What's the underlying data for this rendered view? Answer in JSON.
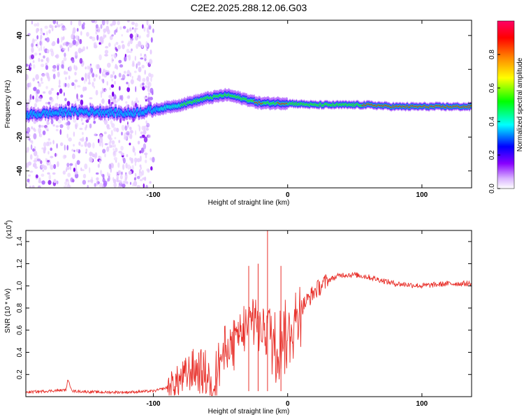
{
  "title": "C2E2.2025.288.12.06.G03",
  "chart_data": [
    {
      "type": "heatmap",
      "name": "spectrogram",
      "xlabel": "Height of straight line (km)",
      "ylabel": "Frequency (Hz)",
      "xlim": [
        -195,
        137
      ],
      "ylim": [
        -50,
        49
      ],
      "x_ticks": [
        -100,
        0,
        100
      ],
      "x_tick_labels": [
        "-100",
        "0",
        "100"
      ],
      "y_ticks": [
        -40,
        -20,
        0,
        20,
        40
      ],
      "y_tick_labels": [
        "-40",
        "-20",
        "0",
        "20",
        "40"
      ],
      "ridge": {
        "x": [
          -195,
          -180,
          -160,
          -140,
          -120,
          -100,
          -80,
          -60,
          -45,
          -35,
          -20,
          -10,
          0,
          20,
          40,
          60,
          80,
          100,
          120,
          137
        ],
        "frequency": [
          -7,
          -6,
          -5,
          -5,
          -6,
          -4,
          -1,
          3,
          5,
          3,
          0,
          0,
          0,
          -1,
          -1,
          -1,
          -2,
          -2,
          -2,
          -2
        ]
      },
      "noise_region_x": [
        -195,
        -100
      ],
      "colorbar": {
        "label": "Normalized spectral amplitude",
        "range": [
          0,
          1
        ],
        "ticks": [
          0.0,
          0.2,
          0.4,
          0.6,
          0.8
        ],
        "tick_labels": [
          "0.0",
          "0.2",
          "0.4",
          "0.6",
          "0.8"
        ],
        "colors": [
          "#ffffff",
          "#cc99ff",
          "#8800ff",
          "#0000ff",
          "#00ffff",
          "#00ff00",
          "#ffff00",
          "#ff8800",
          "#ff0000",
          "#ff0066"
        ]
      }
    },
    {
      "type": "line",
      "name": "snr",
      "xlabel": "Height of straight line (km)",
      "ylabel": "SNR (10 * v/v)",
      "y_scale_label": "(x10",
      "y_scale_exp": "4",
      "y_scale_close": ")",
      "xlim": [
        -195,
        137
      ],
      "ylim": [
        0,
        1.5
      ],
      "x_ticks": [
        -100,
        0,
        100
      ],
      "x_tick_labels": [
        "-100",
        "0",
        "100"
      ],
      "y_ticks": [
        0.2,
        0.4,
        0.6,
        0.8,
        1.0,
        1.2,
        1.4
      ],
      "y_tick_labels": [
        "0.2",
        "0.4",
        "0.6",
        "0.8",
        "1.0",
        "1.2",
        "1.4"
      ],
      "color": "#e8302a",
      "series": [
        {
          "name": "SNR",
          "x": [
            -195,
            -180,
            -165,
            -164,
            -160,
            -140,
            -120,
            -100,
            -90,
            -80,
            -70,
            -60,
            -55,
            -50,
            -40,
            -30,
            -25,
            -20,
            -15,
            -10,
            0,
            10,
            20,
            30,
            40,
            50,
            60,
            70,
            80,
            90,
            100,
            110,
            120,
            137
          ],
          "y": [
            0.04,
            0.05,
            0.06,
            0.15,
            0.05,
            0.04,
            0.04,
            0.05,
            0.08,
            0.15,
            0.25,
            0.2,
            0.1,
            0.35,
            0.5,
            0.6,
            0.75,
            0.6,
            0.7,
            0.45,
            0.55,
            0.8,
            0.95,
            1.05,
            1.1,
            1.1,
            1.08,
            1.05,
            1.02,
            1.01,
            1.0,
            1.01,
            1.02,
            1.02
          ]
        }
      ],
      "spikes": [
        {
          "x": -29,
          "y": 1.18
        },
        {
          "x": -22,
          "y": 1.2
        },
        {
          "x": -15,
          "y": 1.5
        },
        {
          "x": -5,
          "y": 1.18
        }
      ]
    }
  ]
}
